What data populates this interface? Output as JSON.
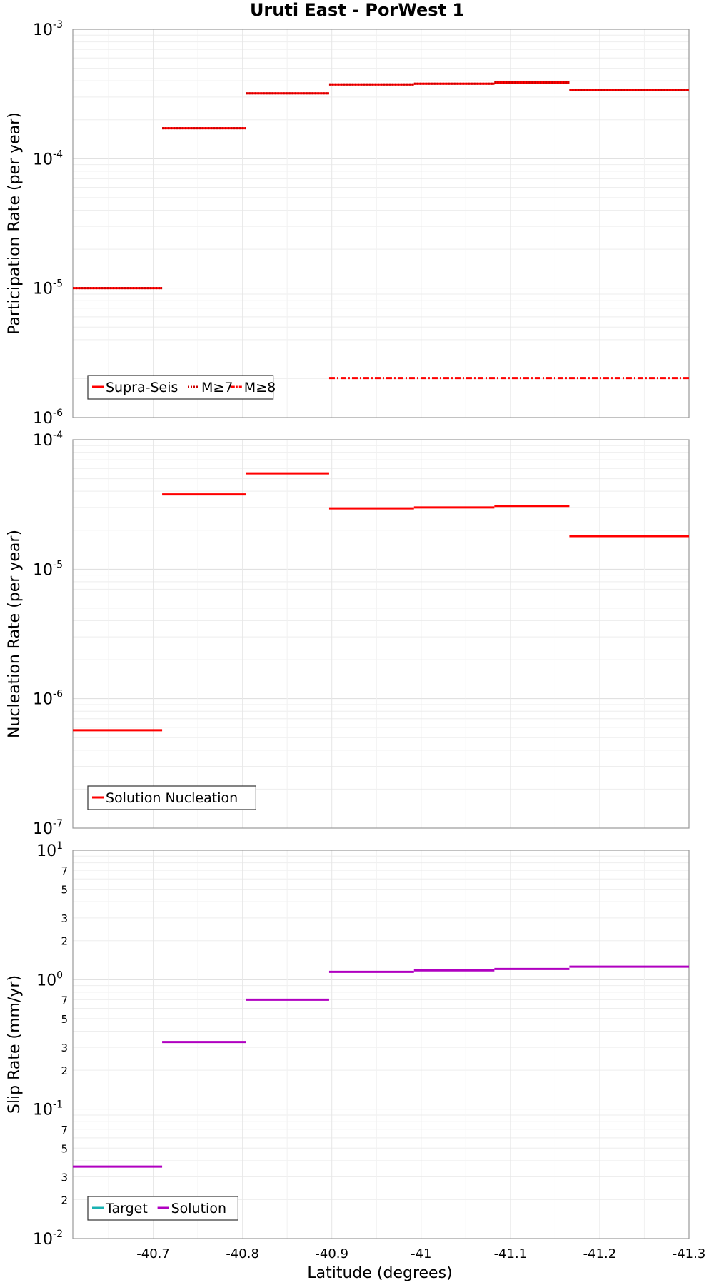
{
  "title": "Uruti East - PorWest 1",
  "xlabel": "Latitude (degrees)",
  "x_ticks": [
    "-40.7",
    "-40.8",
    "-40.9",
    "-41",
    "-41.1",
    "-41.2",
    "-41.3"
  ],
  "chart_data": [
    {
      "type": "line",
      "id": "participation",
      "ylabel": "Participation Rate (per year)",
      "yscale": "log",
      "ylim": [
        1e-06,
        0.001
      ],
      "xlim": [
        -40.61,
        -41.3
      ],
      "y_tick_exponents": [
        "-6",
        "-5",
        "-4",
        "-3"
      ],
      "grid": true,
      "legend_placement": "bottom-left",
      "series": [
        {
          "name": "Supra-Seis",
          "color": "#ff0000",
          "style": "solid",
          "segments": [
            {
              "x": [
                -40.61,
                -40.71
              ],
              "y": 1e-05
            },
            {
              "x": [
                -40.71,
                -40.804
              ],
              "y": 0.000172
            },
            {
              "x": [
                -40.804,
                -40.897
              ],
              "y": 0.00032
            },
            {
              "x": [
                -40.897,
                -40.992
              ],
              "y": 0.000375
            },
            {
              "x": [
                -40.992,
                -41.082
              ],
              "y": 0.00038
            },
            {
              "x": [
                -41.082,
                -41.166
              ],
              "y": 0.000388
            },
            {
              "x": [
                -41.166,
                -41.3
              ],
              "y": 0.000338
            }
          ]
        },
        {
          "name": "M≥7",
          "color": "#ff0000",
          "style": "dotted",
          "segments": [
            {
              "x": [
                -40.61,
                -40.71
              ],
              "y": 1e-05
            },
            {
              "x": [
                -40.71,
                -40.804
              ],
              "y": 0.000172
            },
            {
              "x": [
                -40.804,
                -40.897
              ],
              "y": 0.00032
            },
            {
              "x": [
                -40.897,
                -40.992
              ],
              "y": 0.000375
            },
            {
              "x": [
                -40.992,
                -41.082
              ],
              "y": 0.00038
            },
            {
              "x": [
                -41.082,
                -41.166
              ],
              "y": 0.000388
            },
            {
              "x": [
                -41.166,
                -41.3
              ],
              "y": 0.000338
            }
          ]
        },
        {
          "name": "M≥8",
          "color": "#ff0000",
          "style": "dashdot",
          "segments": [
            {
              "x": [
                -40.897,
                -41.3
              ],
              "y": 2.02e-06
            }
          ]
        }
      ]
    },
    {
      "type": "line",
      "id": "nucleation",
      "ylabel": "Nucleation Rate (per year)",
      "yscale": "log",
      "ylim": [
        1e-07,
        0.0001
      ],
      "xlim": [
        -40.61,
        -41.3
      ],
      "y_tick_exponents": [
        "-7",
        "-6",
        "-5",
        "-4"
      ],
      "grid": true,
      "legend_placement": "bottom-left",
      "series": [
        {
          "name": "Solution Nucleation",
          "color": "#ff0000",
          "style": "solid",
          "segments": [
            {
              "x": [
                -40.61,
                -40.71
              ],
              "y": 5.7e-07
            },
            {
              "x": [
                -40.71,
                -40.804
              ],
              "y": 3.78e-05
            },
            {
              "x": [
                -40.804,
                -40.897
              ],
              "y": 5.5e-05
            },
            {
              "x": [
                -40.897,
                -40.992
              ],
              "y": 2.95e-05
            },
            {
              "x": [
                -40.992,
                -41.082
              ],
              "y": 3e-05
            },
            {
              "x": [
                -41.082,
                -41.166
              ],
              "y": 3.08e-05
            },
            {
              "x": [
                -41.166,
                -41.3
              ],
              "y": 1.8e-05
            }
          ]
        }
      ]
    },
    {
      "type": "line",
      "id": "sliprate",
      "ylabel": "Slip Rate (mm/yr)",
      "yscale": "log",
      "ylim": [
        0.01,
        10
      ],
      "xlim": [
        -40.61,
        -41.3
      ],
      "y_tick_exponents": [
        "-2",
        "-1",
        "0",
        "1"
      ],
      "minor_tick_labels": [
        "2",
        "3",
        "5",
        "7"
      ],
      "grid": true,
      "legend_placement": "bottom-left",
      "series": [
        {
          "name": "Target",
          "color": "#19b2b2",
          "style": "solid",
          "segments": []
        },
        {
          "name": "Solution",
          "color": "#b000c0",
          "style": "solid",
          "segments": [
            {
              "x": [
                -40.61,
                -40.71
              ],
              "y": 0.036
            },
            {
              "x": [
                -40.71,
                -40.804
              ],
              "y": 0.33
            },
            {
              "x": [
                -40.804,
                -40.897
              ],
              "y": 0.7
            },
            {
              "x": [
                -40.897,
                -40.992
              ],
              "y": 1.15
            },
            {
              "x": [
                -40.992,
                -41.082
              ],
              "y": 1.18
            },
            {
              "x": [
                -41.082,
                -41.166
              ],
              "y": 1.21
            },
            {
              "x": [
                -41.166,
                -41.3
              ],
              "y": 1.26
            }
          ]
        }
      ]
    }
  ]
}
